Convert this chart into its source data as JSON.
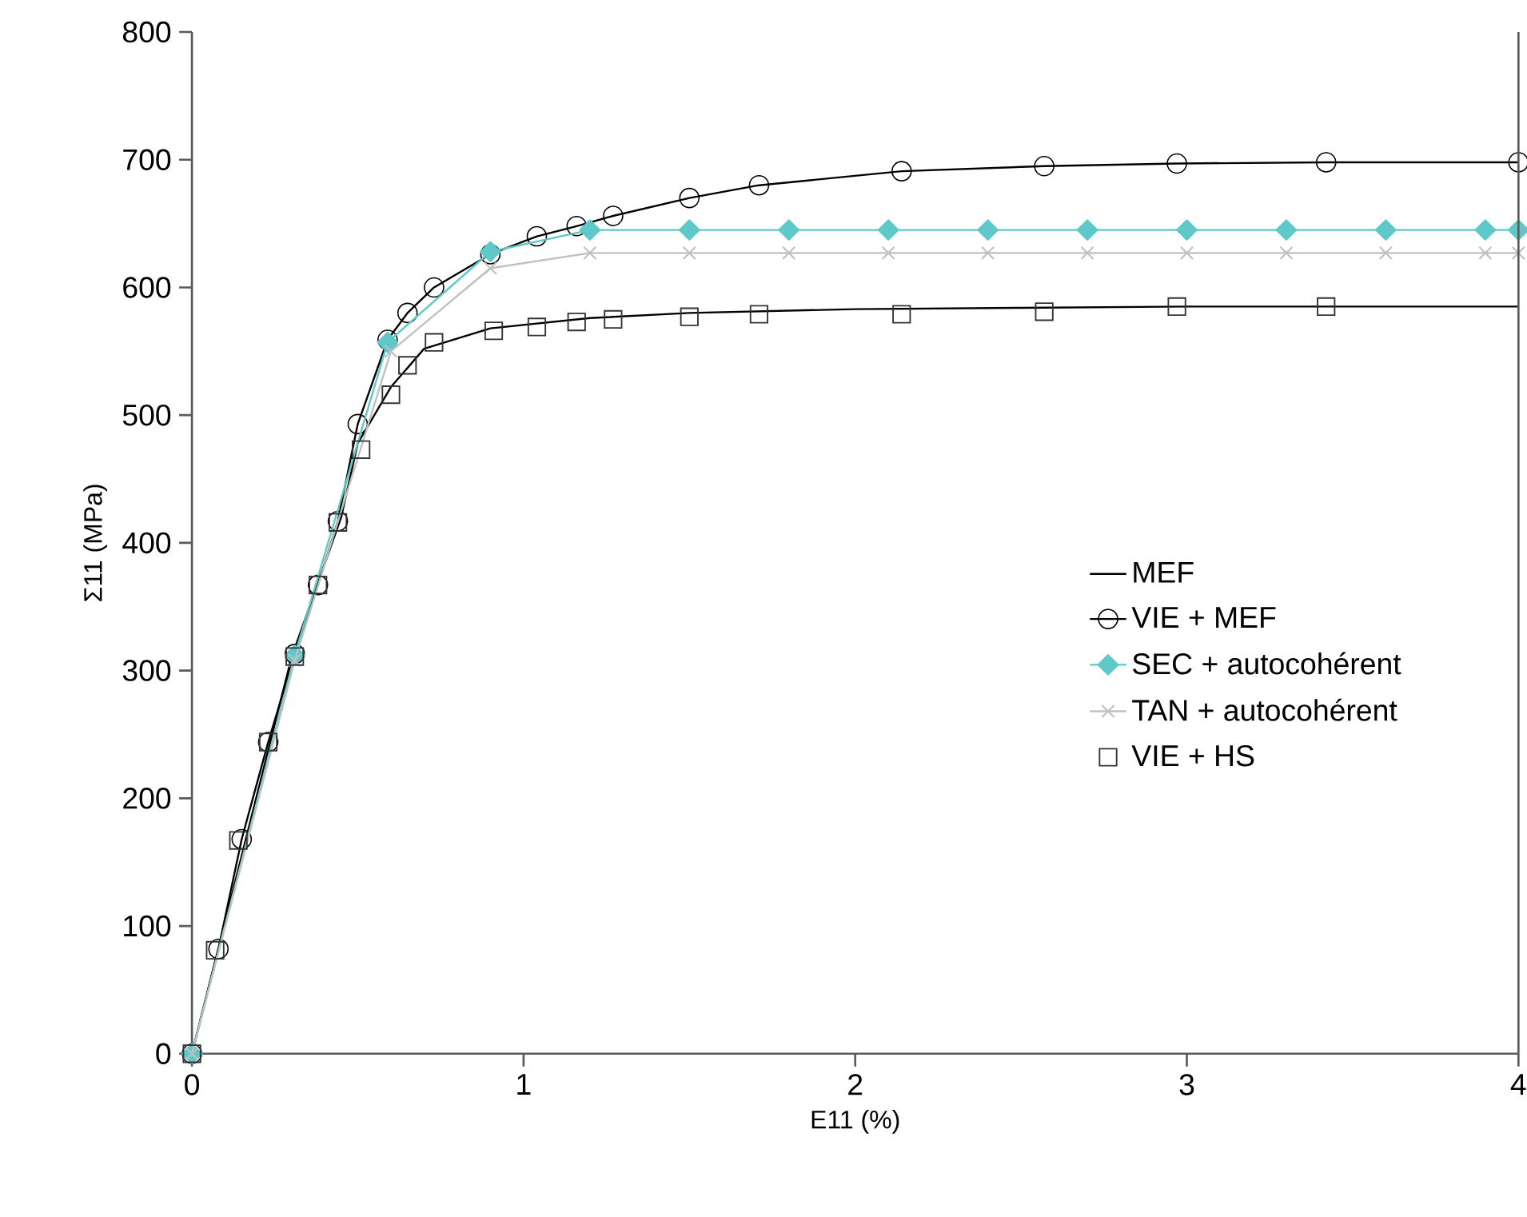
{
  "chart_data": {
    "type": "line",
    "xlabel": "E11 (%)",
    "ylabel": "Σ11 (MPa)",
    "xlim": [
      0,
      4
    ],
    "ylim": [
      0,
      800
    ],
    "xticks": [
      0,
      1,
      2,
      3,
      4
    ],
    "yticks": [
      0,
      100,
      200,
      300,
      400,
      500,
      600,
      700,
      800
    ],
    "grid": false,
    "legend": "right",
    "series": [
      {
        "name": "MEF",
        "color": "#000000",
        "marker": "none",
        "x": [
          0,
          0.3,
          0.45,
          0.5,
          0.6,
          0.7,
          0.9,
          1.2,
          1.5,
          2,
          2.5,
          3,
          4
        ],
        "values": [
          0,
          310,
          420,
          478,
          522,
          552,
          568,
          576,
          580,
          583,
          584,
          585,
          585
        ]
      },
      {
        "name": "VIE + MEF",
        "color": "#000000",
        "marker": "circle",
        "x": [
          0,
          0.08,
          0.15,
          0.23,
          0.31,
          0.38,
          0.44,
          0.5,
          0.59,
          0.65,
          0.73,
          0.9,
          1.04,
          1.16,
          1.27,
          1.5,
          1.71,
          2.14,
          2.57,
          2.97,
          3.42,
          4
        ],
        "values": [
          0,
          82,
          168,
          244,
          313,
          367,
          417,
          493,
          559,
          580,
          600,
          626,
          640,
          648,
          656,
          670,
          680,
          691,
          695,
          697,
          698,
          698
        ]
      },
      {
        "name": "SEC + autocohérent",
        "color": "#5fc8c8",
        "marker": "diamond",
        "x": [
          0,
          0.31,
          0.59,
          0.9,
          1.2,
          1.5,
          1.8,
          2.1,
          2.4,
          2.7,
          3.0,
          3.3,
          3.6,
          3.9,
          4
        ],
        "values": [
          0,
          312,
          557,
          628,
          645,
          645,
          645,
          645,
          645,
          645,
          645,
          645,
          645,
          645,
          645
        ]
      },
      {
        "name": "TAN + autocohérent",
        "color": "#c0c0c0",
        "marker": "cross",
        "x": [
          0,
          0.31,
          0.6,
          0.9,
          1.2,
          1.5,
          1.8,
          2.1,
          2.4,
          2.7,
          3.0,
          3.3,
          3.6,
          3.9,
          4
        ],
        "values": [
          0,
          308,
          550,
          615,
          627,
          627,
          627,
          627,
          627,
          627,
          627,
          627,
          627,
          627,
          627
        ]
      },
      {
        "name": "VIE + HS",
        "type": "scatter",
        "color": "#333333",
        "marker": "square",
        "x": [
          0,
          0.07,
          0.14,
          0.23,
          0.31,
          0.38,
          0.44,
          0.51,
          0.6,
          0.65,
          0.73,
          0.91,
          1.04,
          1.16,
          1.27,
          1.5,
          1.71,
          2.14,
          2.57,
          2.97,
          3.42
        ],
        "values": [
          0,
          81,
          167,
          244,
          311,
          367,
          416,
          473,
          516,
          539,
          557,
          566,
          569,
          573,
          575,
          577,
          579,
          579,
          581,
          585,
          585
        ]
      }
    ]
  }
}
